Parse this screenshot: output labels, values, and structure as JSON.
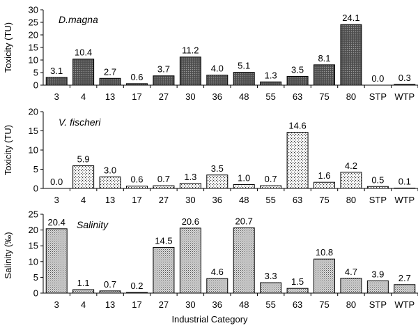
{
  "chart_data": [
    {
      "type": "bar",
      "title": "D.magna",
      "ylabel": "Toxicity (TU)",
      "xlabel": "",
      "ylim": [
        0,
        30
      ],
      "yticks": [
        0,
        5,
        10,
        15,
        20,
        25,
        30
      ],
      "categories": [
        "3",
        "4",
        "13",
        "17",
        "27",
        "30",
        "36",
        "48",
        "55",
        "63",
        "75",
        "80",
        "STP",
        "WTP"
      ],
      "values": [
        3.1,
        10.4,
        2.7,
        0.6,
        3.7,
        11.2,
        4.0,
        5.1,
        1.3,
        3.5,
        8.1,
        24.1,
        0.0,
        0.3
      ],
      "value_labels": [
        "3.1",
        "10.4",
        "2.7",
        "0.6",
        "3.7",
        "11.2",
        "4.0",
        "5.1",
        "1.3",
        "3.5",
        "8.1",
        "24.1",
        "0.0",
        "0.3"
      ],
      "fill_pattern": "dark-hatch",
      "grid": false
    },
    {
      "type": "bar",
      "title": "V. fischeri",
      "ylabel": "Toxicity (TU)",
      "xlabel": "",
      "ylim": [
        0,
        20
      ],
      "yticks": [
        0,
        5,
        10,
        15,
        20
      ],
      "categories": [
        "3",
        "4",
        "13",
        "17",
        "27",
        "30",
        "36",
        "48",
        "55",
        "63",
        "75",
        "80",
        "STP",
        "WTP"
      ],
      "values": [
        0.0,
        5.9,
        3.0,
        0.6,
        0.7,
        1.3,
        3.5,
        1.0,
        0.7,
        14.6,
        1.6,
        4.2,
        0.5,
        0.1
      ],
      "value_labels": [
        "0.0",
        "5.9",
        "3.0",
        "0.6",
        "0.7",
        "1.3",
        "3.5",
        "1.0",
        "0.7",
        "14.6",
        "1.6",
        "4.2",
        "0.5",
        "0.1"
      ],
      "fill_pattern": "dots",
      "grid": false
    },
    {
      "type": "bar",
      "title": "Salinity",
      "ylabel": "Salinity (‰)",
      "xlabel": "Industrial Category",
      "ylim": [
        0,
        25
      ],
      "yticks": [
        0,
        5,
        10,
        15,
        20,
        25
      ],
      "categories": [
        "3",
        "4",
        "13",
        "17",
        "27",
        "30",
        "36",
        "48",
        "55",
        "63",
        "75",
        "80",
        "STP",
        "WTP"
      ],
      "values": [
        20.4,
        1.1,
        0.7,
        0.2,
        14.5,
        20.6,
        4.6,
        20.7,
        3.3,
        1.5,
        10.8,
        4.7,
        3.9,
        2.7
      ],
      "value_labels": [
        "20.4",
        "1.1",
        "0.7",
        "0.2",
        "14.5",
        "20.6",
        "4.6",
        "20.7",
        "3.3",
        "1.5",
        "10.8",
        "4.7",
        "3.9",
        "2.7"
      ],
      "fill_pattern": "fine-dots",
      "grid": false
    }
  ]
}
